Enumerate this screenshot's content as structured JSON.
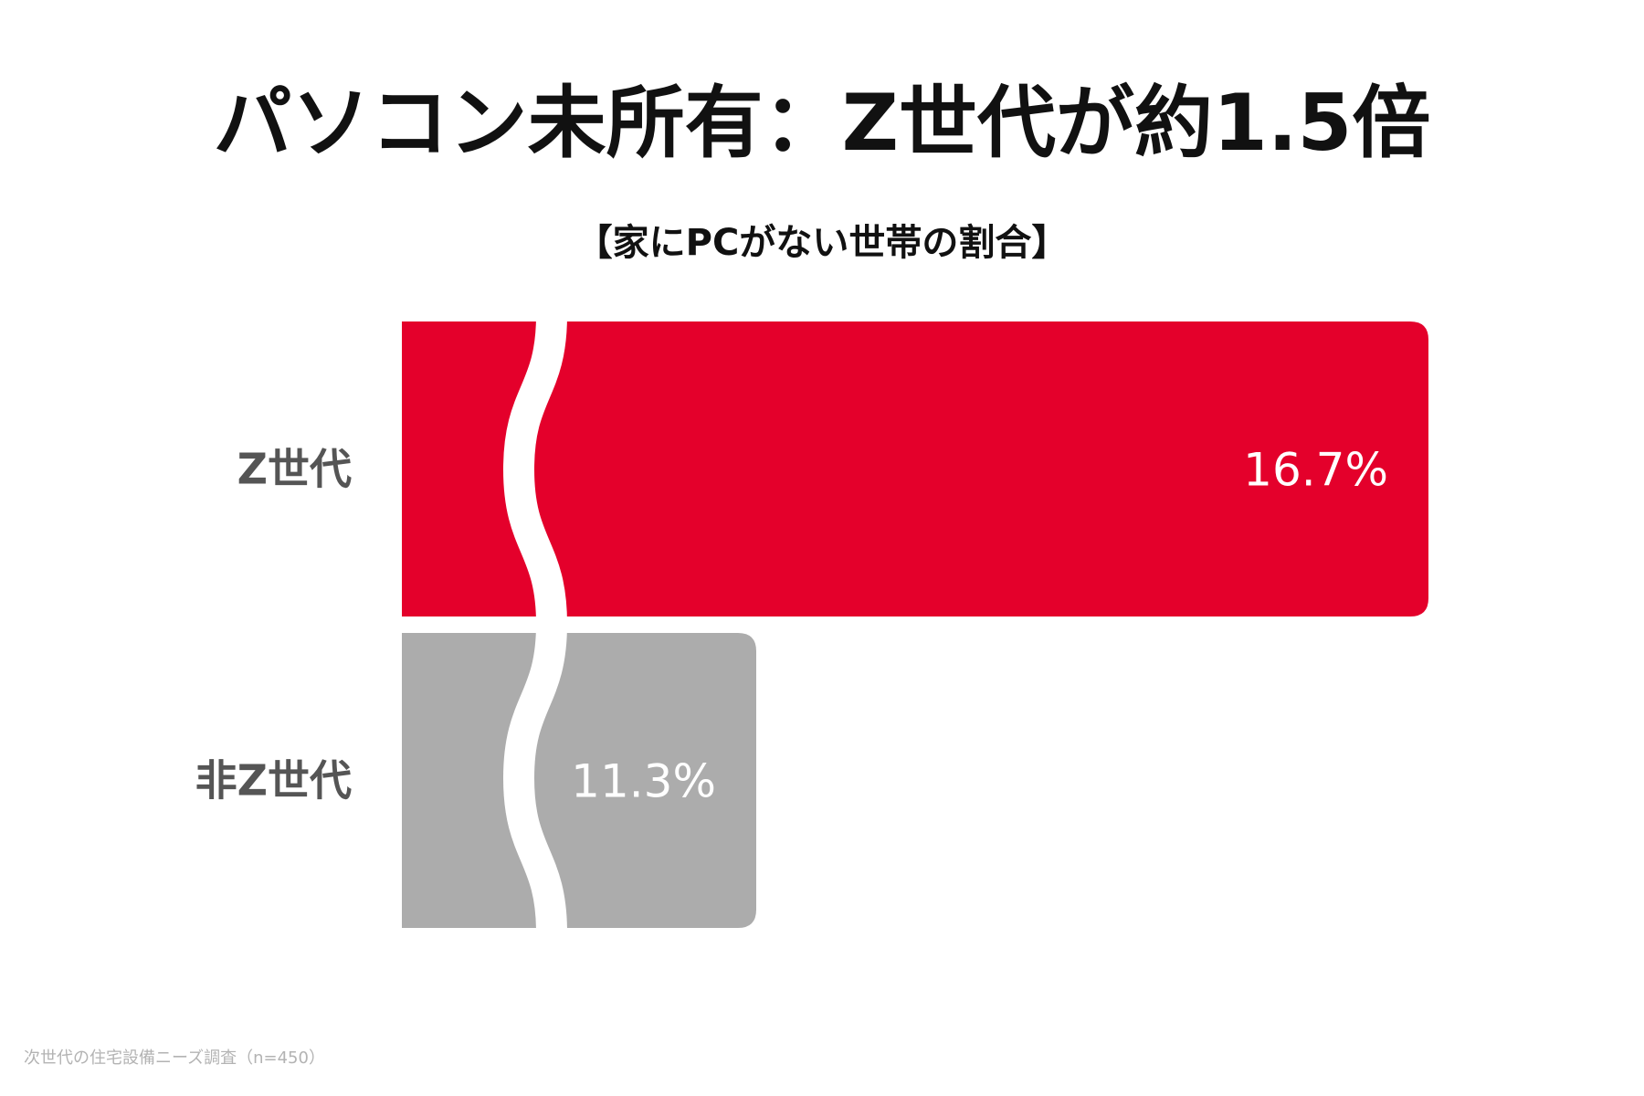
{
  "chart_data": {
    "type": "bar",
    "orientation": "horizontal",
    "axis_break": true,
    "title": "パソコン未所有：Z世代が約1.5倍",
    "subtitle": "【家にPCがない世帯の割合】",
    "categories": [
      "Z世代",
      "非Z世代"
    ],
    "values": [
      16.7,
      11.3
    ],
    "value_labels": [
      "16.7%",
      "11.3%"
    ],
    "unit": "%",
    "bar_colors": [
      "#e4002b",
      "#acacac"
    ],
    "label_color": "#ffffff",
    "category_label_color": "#555555"
  },
  "footnote": "次世代の住宅設備ニーズ調査（n=450）"
}
